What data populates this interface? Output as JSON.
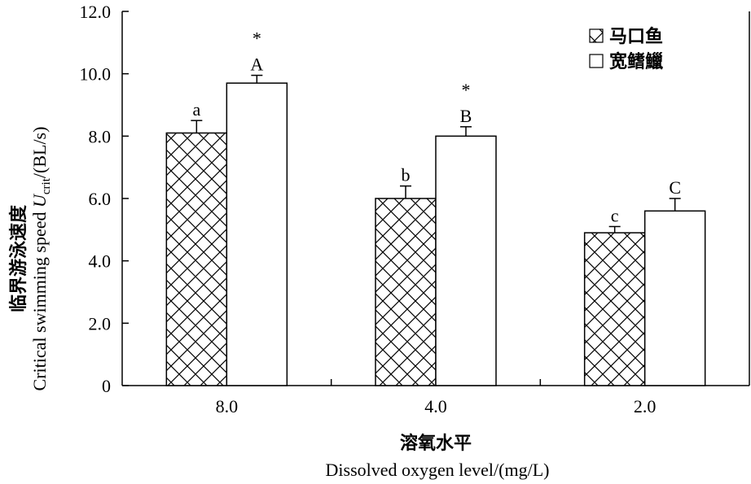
{
  "chart_data": {
    "type": "bar",
    "categories": [
      "8.0",
      "4.0",
      "2.0"
    ],
    "series": [
      {
        "name": "马口鱼",
        "pattern": "crosshatch",
        "values": [
          8.1,
          6.0,
          4.9
        ],
        "errors": [
          0.4,
          0.4,
          0.2
        ],
        "letters": [
          "a",
          "b",
          "c"
        ],
        "stars": [
          "",
          "",
          ""
        ]
      },
      {
        "name": "宽鳍鱲",
        "pattern": "none",
        "values": [
          9.7,
          8.0,
          5.6
        ],
        "errors": [
          0.25,
          0.3,
          0.4
        ],
        "letters": [
          "A",
          "B",
          "C"
        ],
        "stars": [
          "*",
          "*",
          ""
        ]
      }
    ],
    "yticks": [
      "0",
      "2.0",
      "4.0",
      "6.0",
      "8.0",
      "10.0",
      "12.0"
    ],
    "ylim": [
      0,
      12
    ],
    "ylabel_cn": "临界游泳速度",
    "ylabel_en": "Critical swimming speed",
    "ylabel_var": "U",
    "ylabel_sub": "crit",
    "ylabel_unit": "/(BL/s)",
    "xlabel_cn": "溶氧水平",
    "xlabel_en": "Dissolved oxygen level/(mg/L)",
    "legend_position": "top-right",
    "grid": false
  }
}
